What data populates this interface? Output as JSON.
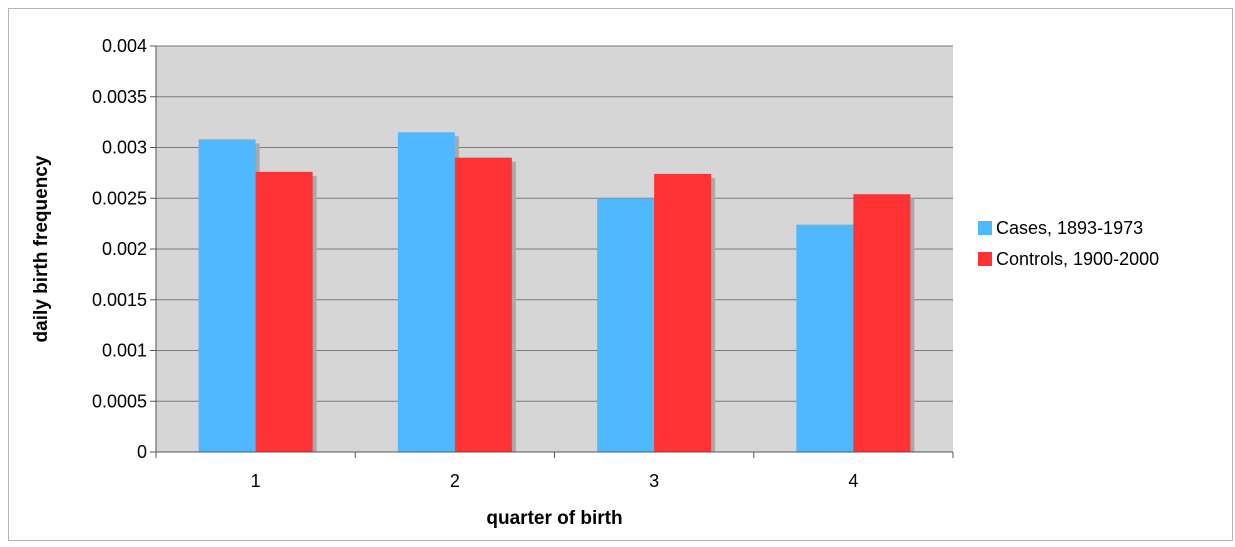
{
  "chart_data": {
    "type": "bar",
    "title": "",
    "xlabel": "quarter of birth",
    "ylabel": "daily birth frequency",
    "categories": [
      "1",
      "2",
      "3",
      "4"
    ],
    "ylim": [
      0,
      0.004
    ],
    "yticks": [
      "0",
      "0.0005",
      "0.001",
      "0.0015",
      "0.002",
      "0.0025",
      "0.003",
      "0.0035",
      "0.004"
    ],
    "grid": true,
    "legend_position": "right",
    "series": [
      {
        "name": "Cases, 1893-1973",
        "color": "#4fb8fe",
        "values": [
          0.00308,
          0.00315,
          0.0025,
          0.00224
        ]
      },
      {
        "name": "Controls, 1900-2000",
        "color": "#ff3333",
        "values": [
          0.00276,
          0.0029,
          0.00274,
          0.00254
        ]
      }
    ],
    "plot_background": "#d6d6d6"
  }
}
